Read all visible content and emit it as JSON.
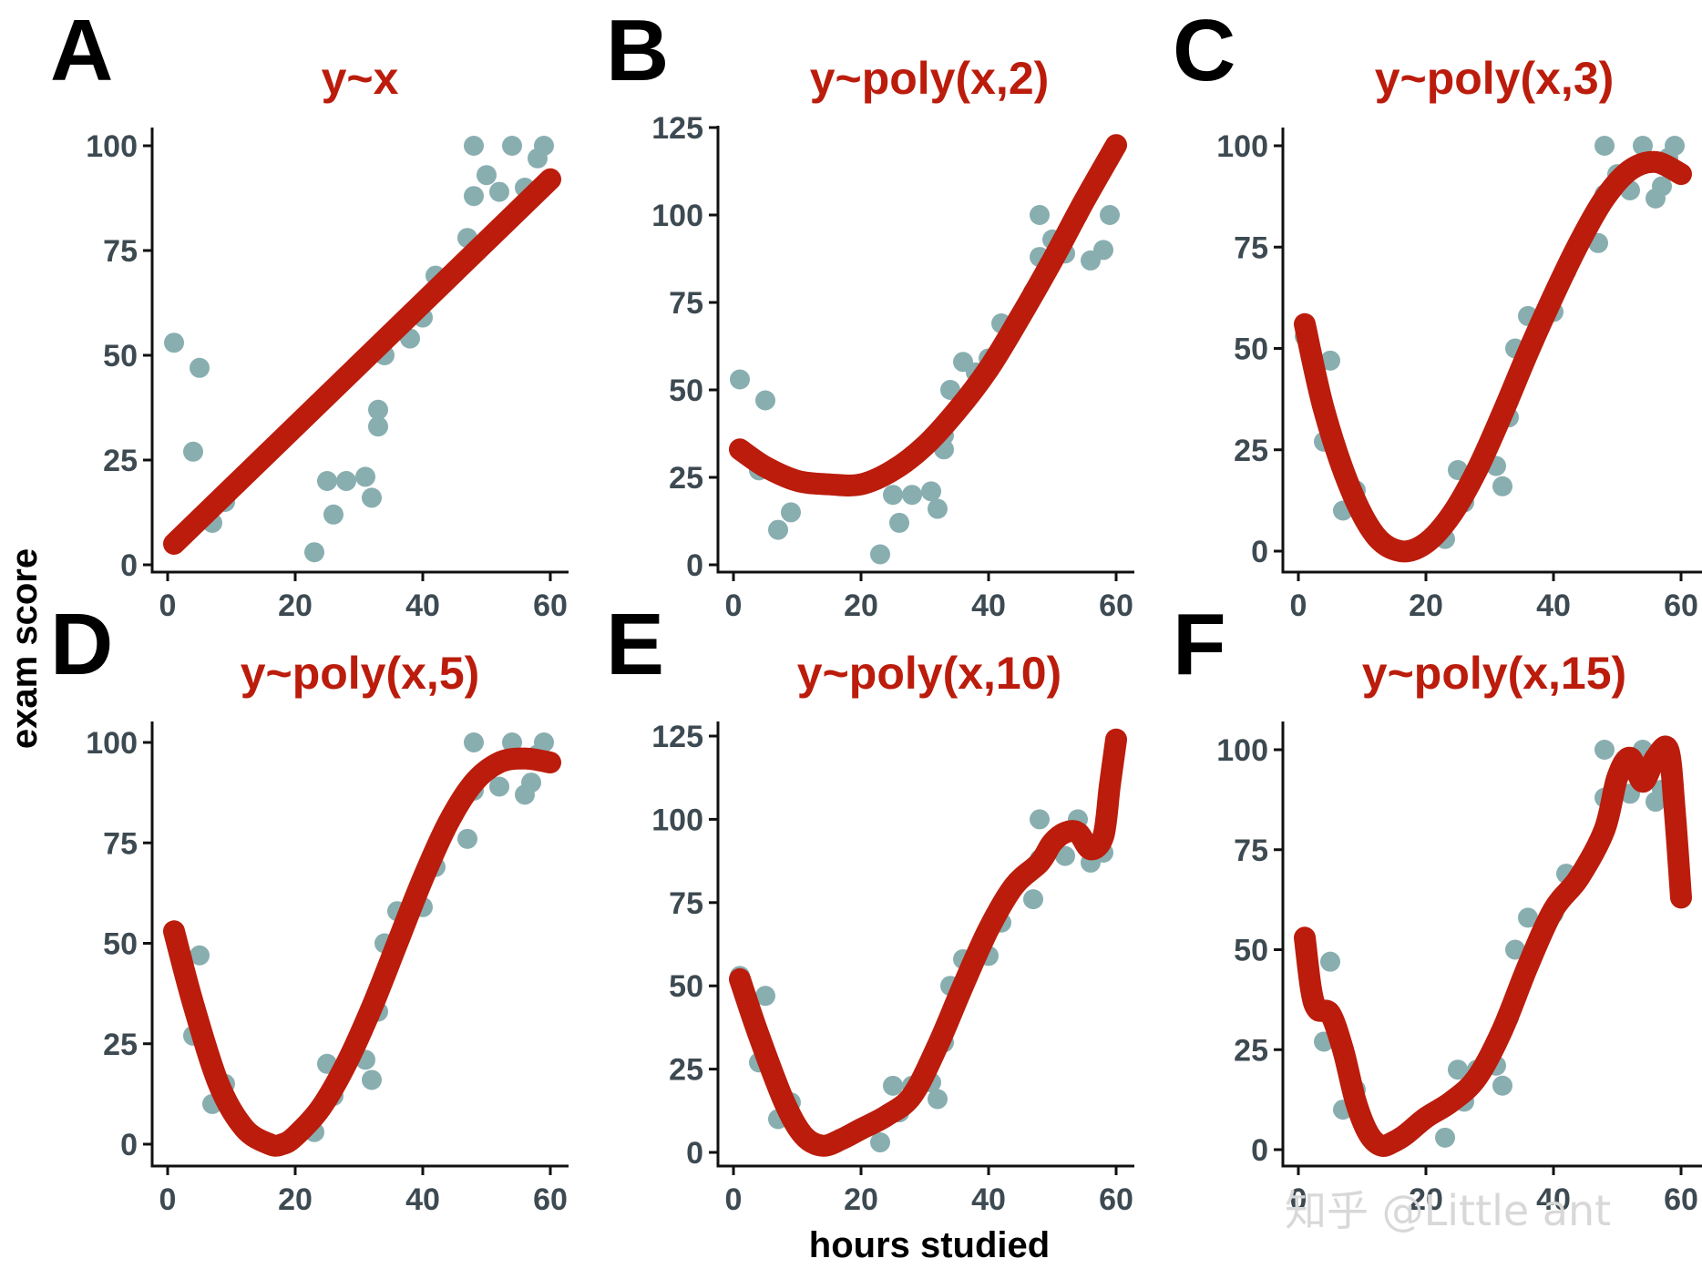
{
  "figure": {
    "xlabel": "hours studied",
    "ylabel": "exam score",
    "watermark": "知乎 @Little ant"
  },
  "colors": {
    "points": "#88aeb0",
    "fit": "#bb1c0c",
    "title": "#bb1c0c",
    "axis": "#111111",
    "tick_label": "#3d4a52"
  },
  "chart_data": [
    {
      "type": "scatter",
      "panel": "A",
      "title": "y~x",
      "xlabel": "hours studied",
      "ylabel": "exam score",
      "xlim": [
        0,
        60
      ],
      "ylim": [
        0,
        100
      ],
      "xticks": [
        0,
        20,
        40,
        60
      ],
      "yticks": [
        0,
        25,
        50,
        75,
        100
      ],
      "points": {
        "x": [
          1,
          4,
          5,
          7,
          9,
          23,
          25,
          26,
          28,
          31,
          32,
          33,
          33,
          34,
          38,
          40,
          42,
          47,
          48,
          48,
          50,
          52,
          54,
          56,
          58,
          59
        ],
        "y": [
          53,
          27,
          47,
          10,
          15,
          3,
          20,
          12,
          20,
          21,
          16,
          37,
          33,
          50,
          54,
          59,
          69,
          78,
          88,
          100,
          93,
          89,
          100,
          90,
          97,
          100
        ]
      },
      "fit": {
        "label": "y~x",
        "x": [
          1,
          60
        ],
        "y": [
          5,
          92
        ]
      }
    },
    {
      "type": "scatter",
      "panel": "B",
      "title": "y~poly(x,2)",
      "xlabel": "hours studied",
      "ylabel": "exam score",
      "xlim": [
        0,
        60
      ],
      "ylim": [
        0,
        125
      ],
      "xticks": [
        0,
        20,
        40,
        60
      ],
      "yticks": [
        0,
        25,
        50,
        75,
        100,
        125
      ],
      "points": {
        "x": [
          1,
          4,
          5,
          7,
          9,
          23,
          25,
          26,
          28,
          31,
          32,
          33,
          33,
          34,
          36,
          38,
          40,
          42,
          47,
          48,
          48,
          50,
          52,
          54,
          56,
          58,
          59
        ],
        "y": [
          53,
          27,
          47,
          10,
          15,
          3,
          20,
          12,
          20,
          21,
          16,
          37,
          33,
          50,
          58,
          55,
          59,
          69,
          78,
          88,
          100,
          93,
          89,
          100,
          87,
          90,
          100
        ]
      },
      "fit": {
        "label": "y~poly(x,2)",
        "x": [
          1,
          5,
          10,
          15,
          20,
          25,
          30,
          35,
          40,
          45,
          50,
          55,
          60
        ],
        "y": [
          33,
          28,
          24,
          23,
          23,
          27,
          34,
          44,
          56,
          71,
          87,
          104,
          120
        ]
      }
    },
    {
      "type": "scatter",
      "panel": "C",
      "title": "y~poly(x,3)",
      "xlabel": "hours studied",
      "ylabel": "exam score",
      "xlim": [
        0,
        60
      ],
      "ylim": [
        0,
        100
      ],
      "xticks": [
        0,
        20,
        40,
        60
      ],
      "yticks": [
        0,
        25,
        50,
        75,
        100
      ],
      "points": {
        "x": [
          1,
          4,
          5,
          7,
          9,
          23,
          25,
          26,
          28,
          31,
          32,
          33,
          33,
          34,
          36,
          40,
          42,
          47,
          48,
          48,
          50,
          52,
          54,
          56,
          57,
          58,
          59
        ],
        "y": [
          53,
          27,
          47,
          10,
          15,
          3,
          20,
          12,
          20,
          21,
          16,
          37,
          33,
          50,
          58,
          59,
          69,
          76,
          88,
          100,
          93,
          89,
          100,
          87,
          90,
          97,
          100
        ]
      },
      "fit": {
        "label": "y~poly(x,3)",
        "x": [
          1,
          4,
          8,
          12,
          16,
          20,
          24,
          28,
          32,
          36,
          40,
          44,
          48,
          52,
          56,
          60
        ],
        "y": [
          56,
          35,
          16,
          4,
          0,
          2,
          9,
          20,
          34,
          49,
          63,
          76,
          87,
          94,
          96,
          93
        ]
      }
    },
    {
      "type": "scatter",
      "panel": "D",
      "title": "y~poly(x,5)",
      "xlabel": "hours studied",
      "ylabel": "exam score",
      "xlim": [
        0,
        60
      ],
      "ylim": [
        0,
        100
      ],
      "xticks": [
        0,
        20,
        40,
        60
      ],
      "yticks": [
        0,
        25,
        50,
        75,
        100
      ],
      "points": {
        "x": [
          1,
          4,
          5,
          7,
          9,
          23,
          25,
          26,
          28,
          31,
          32,
          33,
          34,
          36,
          40,
          42,
          47,
          48,
          48,
          50,
          52,
          54,
          56,
          57,
          58,
          59
        ],
        "y": [
          53,
          27,
          47,
          10,
          15,
          3,
          20,
          12,
          20,
          21,
          16,
          33,
          50,
          58,
          59,
          69,
          76,
          88,
          100,
          93,
          89,
          100,
          87,
          90,
          97,
          100
        ]
      },
      "fit": {
        "label": "y~poly(x,5)",
        "x": [
          1,
          4,
          8,
          12,
          16,
          18,
          20,
          24,
          28,
          32,
          36,
          40,
          44,
          48,
          52,
          56,
          60
        ],
        "y": [
          53,
          35,
          15,
          4,
          0,
          0,
          2,
          9,
          20,
          34,
          50,
          66,
          80,
          90,
          95,
          96,
          95
        ]
      }
    },
    {
      "type": "scatter",
      "panel": "E",
      "title": "y~poly(x,10)",
      "xlabel": "hours studied",
      "ylabel": "exam score",
      "xlim": [
        0,
        60
      ],
      "ylim": [
        0,
        125
      ],
      "xticks": [
        0,
        20,
        40,
        60
      ],
      "yticks": [
        0,
        25,
        50,
        75,
        100,
        125
      ],
      "points": {
        "x": [
          1,
          4,
          5,
          7,
          9,
          23,
          25,
          26,
          28,
          31,
          32,
          33,
          34,
          36,
          40,
          42,
          47,
          48,
          48,
          50,
          52,
          54,
          56,
          58
        ],
        "y": [
          53,
          27,
          47,
          10,
          15,
          3,
          20,
          12,
          20,
          21,
          16,
          33,
          50,
          58,
          59,
          69,
          76,
          88,
          100,
          93,
          89,
          100,
          87,
          90
        ]
      },
      "fit": {
        "label": "y~poly(x,10)",
        "x": [
          1,
          4,
          8,
          11,
          14,
          17,
          20,
          24,
          28,
          32,
          36,
          40,
          44,
          48,
          50,
          52,
          54,
          56,
          58,
          59,
          60
        ],
        "y": [
          52,
          35,
          15,
          5,
          2,
          4,
          7,
          11,
          17,
          32,
          50,
          67,
          80,
          87,
          93,
          96,
          96,
          91,
          95,
          110,
          124
        ]
      }
    },
    {
      "type": "scatter",
      "panel": "F",
      "title": "y~poly(x,15)",
      "xlabel": "hours studied",
      "ylabel": "exam score",
      "xlim": [
        0,
        60
      ],
      "ylim": [
        0,
        100
      ],
      "xticks": [
        0,
        20,
        40,
        60
      ],
      "yticks": [
        0,
        25,
        50,
        75,
        100
      ],
      "points": {
        "x": [
          1,
          4,
          5,
          7,
          9,
          23,
          25,
          26,
          28,
          31,
          32,
          33,
          34,
          36,
          38,
          40,
          42,
          47,
          48,
          48,
          50,
          52,
          54,
          56,
          57,
          58
        ],
        "y": [
          53,
          27,
          47,
          10,
          15,
          3,
          20,
          12,
          20,
          21,
          16,
          33,
          50,
          58,
          54,
          59,
          69,
          76,
          88,
          100,
          93,
          89,
          100,
          87,
          90,
          97
        ]
      },
      "fit": {
        "label": "y~poly(x,15)",
        "x": [
          1,
          2,
          3,
          5,
          7,
          9,
          11,
          13,
          15,
          17,
          20,
          24,
          28,
          32,
          36,
          40,
          44,
          48,
          50,
          52,
          54,
          56,
          58,
          59,
          60
        ],
        "y": [
          53,
          40,
          35,
          34,
          25,
          12,
          4,
          1,
          2,
          4,
          8,
          12,
          18,
          30,
          46,
          60,
          68,
          80,
          93,
          98,
          92,
          98,
          100,
          85,
          63
        ]
      }
    }
  ]
}
